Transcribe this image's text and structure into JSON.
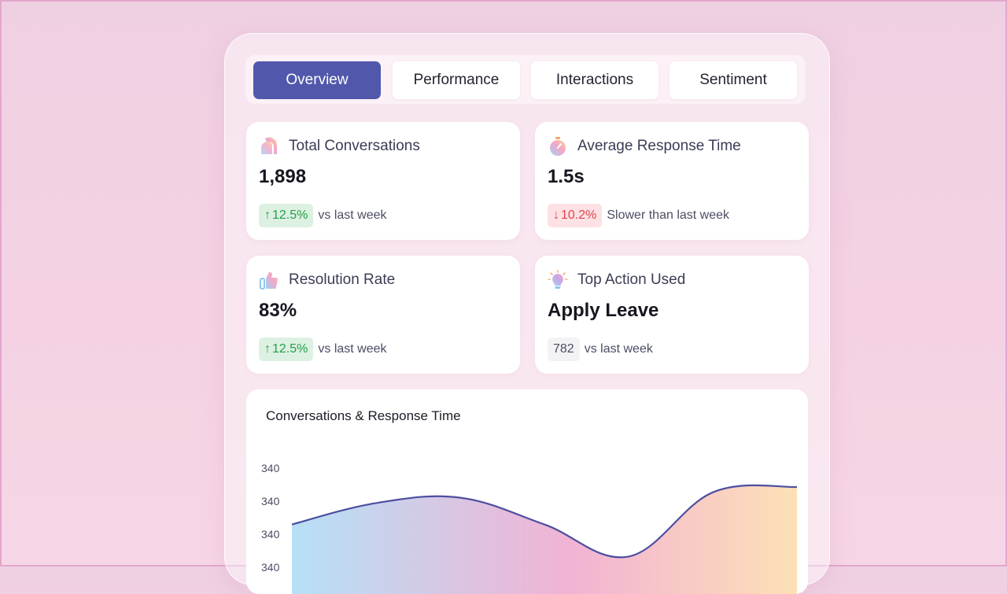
{
  "tabs": [
    {
      "label": "Overview",
      "active": true
    },
    {
      "label": "Performance",
      "active": false
    },
    {
      "label": "Interactions",
      "active": false
    },
    {
      "label": "Sentiment",
      "active": false
    }
  ],
  "cards": {
    "total_conversations": {
      "icon": "chat-bubbles-icon",
      "title": "Total Conversations",
      "value": "1,898",
      "change": "12.5%",
      "change_arrow": "↑",
      "change_direction": "up",
      "note": "vs last week"
    },
    "avg_response_time": {
      "icon": "stopwatch-icon",
      "title": "Average Response Time",
      "value": "1.5s",
      "change": "10.2%",
      "change_arrow": "↓",
      "change_direction": "down",
      "note": "Slower than last week"
    },
    "resolution_rate": {
      "icon": "thumbs-up-icon",
      "title": "Resolution Rate",
      "value": "83%",
      "change": "12.5%",
      "change_arrow": "↑",
      "change_direction": "up",
      "note": "vs last week"
    },
    "top_action": {
      "icon": "lightbulb-icon",
      "title": "Top Action Used",
      "value": "Apply Leave",
      "count": "782",
      "note": "vs last week"
    }
  },
  "chart_data": {
    "type": "area",
    "title": "Conversations & Response Time",
    "y_tick_labels": [
      "340",
      "340",
      "340",
      "340"
    ],
    "x": [
      0,
      1,
      2,
      3,
      4,
      5,
      6
    ],
    "values": [
      333,
      337,
      338,
      333,
      327,
      339,
      340
    ],
    "ylim": [
      320,
      345
    ],
    "grid": false,
    "legend": "none"
  },
  "colors": {
    "accent": "#5157ab",
    "line": "#4c4fa0",
    "positive": "#23a04a",
    "negative": "#e0454f",
    "gradient_start": "#b6e0f7",
    "gradient_mid": "#f2b3d4",
    "gradient_end": "#fde0b6"
  }
}
